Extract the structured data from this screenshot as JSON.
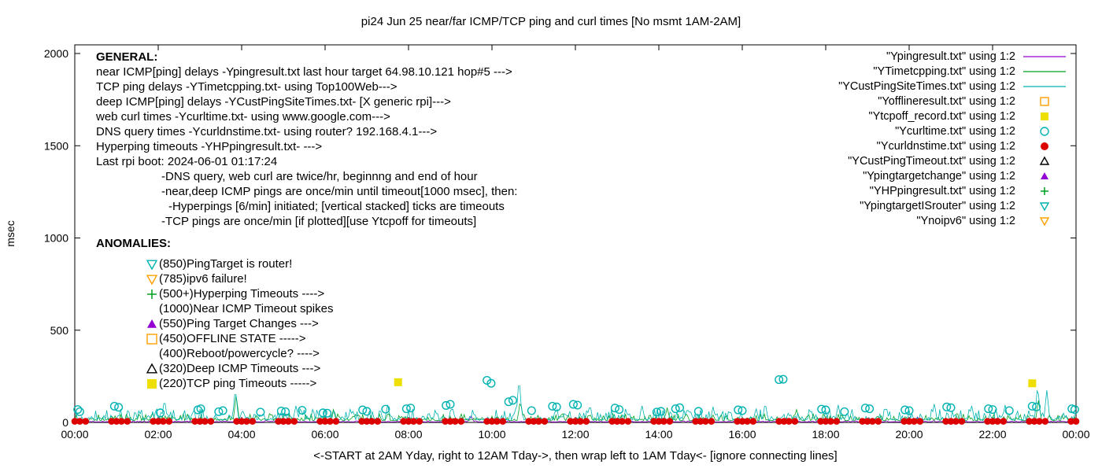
{
  "palette": {
    "purple": "#9400d3",
    "green": "#00a020",
    "teal": "#00b2b2",
    "orange": "#ffa000",
    "yellow": "#efdf00",
    "red": "#dd0000",
    "black": "#000000"
  },
  "chart_data": {
    "type": "line",
    "title": "pi24 Jun 25  near/far ICMP/TCP ping and curl times [No msmt 1AM-2AM]",
    "x_axis": {
      "label": "<-START at 2AM Yday, right to 12AM Tday->, then wrap left to 1AM Tday<- [ignore connecting lines]",
      "tick_labels": [
        "00:00",
        "02:00",
        "04:00",
        "06:00",
        "08:00",
        "10:00",
        "12:00",
        "14:00",
        "16:00",
        "18:00",
        "20:00",
        "22:00",
        "00:00"
      ],
      "hours_span": 24
    },
    "y_axis": {
      "label": "msec",
      "ticks": [
        0,
        500,
        1000,
        1500,
        2000
      ],
      "range": [
        0,
        2000
      ]
    },
    "series": [
      {
        "name": "Ypingresult.txt",
        "style": "line",
        "color": "purple",
        "baseline_msec": 3,
        "noise_msec": 7,
        "seed": 101,
        "spikes": [
          [
            9.5,
            35
          ],
          [
            20.2,
            30
          ]
        ]
      },
      {
        "name": "YTimetcpping.txt",
        "style": "line",
        "color": "green",
        "baseline_msec": 10,
        "noise_msec": 38,
        "seed": 202,
        "spikes": [
          [
            3.87,
            150
          ],
          [
            6.2,
            70
          ],
          [
            10.68,
            120
          ],
          [
            14.2,
            80
          ],
          [
            17.3,
            70
          ],
          [
            23.1,
            120
          ]
        ]
      },
      {
        "name": "YCustPingSiteTimes.txt",
        "style": "line",
        "color": "teal",
        "baseline_msec": 14,
        "noise_msec": 60,
        "seed": 303,
        "spikes": [
          [
            2.15,
            130
          ],
          [
            3.85,
            190
          ],
          [
            5.3,
            90
          ],
          [
            7.5,
            95
          ],
          [
            9.05,
            90
          ],
          [
            10.65,
            250
          ],
          [
            12.35,
            100
          ],
          [
            13.6,
            90
          ],
          [
            15.3,
            85
          ],
          [
            16.55,
            110
          ],
          [
            18.3,
            95
          ],
          [
            19.45,
            90
          ],
          [
            20.6,
            100
          ],
          [
            21.5,
            90
          ],
          [
            22.3,
            95
          ],
          [
            23.08,
            205
          ],
          [
            23.3,
            175
          ]
        ]
      },
      {
        "name": "Ycurltime.txt",
        "style": "circle-open",
        "color": "teal",
        "points": [
          [
            0.07,
            70
          ],
          [
            0.12,
            58
          ],
          [
            0.95,
            88
          ],
          [
            1.05,
            82
          ],
          [
            2.05,
            52
          ],
          [
            2.95,
            68
          ],
          [
            3.02,
            74
          ],
          [
            3.45,
            58
          ],
          [
            3.55,
            64
          ],
          [
            4.45,
            56
          ],
          [
            4.95,
            62
          ],
          [
            5.05,
            58
          ],
          [
            5.45,
            66
          ],
          [
            5.95,
            52
          ],
          [
            6.05,
            50
          ],
          [
            6.9,
            68
          ],
          [
            7.0,
            60
          ],
          [
            7.45,
            72
          ],
          [
            7.95,
            74
          ],
          [
            8.05,
            78
          ],
          [
            8.9,
            92
          ],
          [
            9.0,
            98
          ],
          [
            9.88,
            228
          ],
          [
            9.98,
            212
          ],
          [
            10.4,
            112
          ],
          [
            10.5,
            120
          ],
          [
            10.95,
            64
          ],
          [
            11.45,
            88
          ],
          [
            11.55,
            84
          ],
          [
            11.95,
            98
          ],
          [
            12.05,
            94
          ],
          [
            12.95,
            78
          ],
          [
            13.05,
            70
          ],
          [
            13.95,
            56
          ],
          [
            14.05,
            60
          ],
          [
            14.4,
            74
          ],
          [
            14.5,
            80
          ],
          [
            14.95,
            60
          ],
          [
            15.9,
            68
          ],
          [
            16.0,
            64
          ],
          [
            16.88,
            232
          ],
          [
            16.98,
            234
          ],
          [
            17.9,
            72
          ],
          [
            18.0,
            68
          ],
          [
            18.45,
            58
          ],
          [
            18.95,
            78
          ],
          [
            19.05,
            74
          ],
          [
            19.9,
            68
          ],
          [
            20.0,
            64
          ],
          [
            20.9,
            84
          ],
          [
            21.0,
            80
          ],
          [
            21.9,
            74
          ],
          [
            22.0,
            70
          ],
          [
            22.4,
            64
          ],
          [
            22.95,
            88
          ],
          [
            23.05,
            84
          ],
          [
            23.9,
            74
          ],
          [
            23.97,
            70
          ]
        ]
      },
      {
        "name": "Ycurldnstime.txt",
        "style": "circle-filled",
        "color": "red",
        "repeat": {
          "every_hours": 1,
          "offsets": [
            -0.12,
            0,
            0.12,
            0.26
          ],
          "y_msec": 6
        }
      },
      {
        "name": "Ytcpoff_record.txt",
        "style": "square-filled",
        "color": "yellow",
        "points": [
          [
            7.75,
            218
          ],
          [
            22.95,
            212
          ]
        ]
      }
    ]
  },
  "legend": [
    {
      "label": "\"Ypingresult.txt\" using 1:2",
      "marker": "line",
      "color": "purple"
    },
    {
      "label": "\"YTimetcpping.txt\" using 1:2",
      "marker": "line",
      "color": "green"
    },
    {
      "label": "\"YCustPingSiteTimes.txt\" using 1:2",
      "marker": "line",
      "color": "teal"
    },
    {
      "label": "\"Yofflineresult.txt\" using 1:2",
      "marker": "square-open",
      "color": "orange"
    },
    {
      "label": "\"Ytcpoff_record.txt\" using 1:2",
      "marker": "square-filled",
      "color": "yellow"
    },
    {
      "label": "\"Ycurltime.txt\" using 1:2",
      "marker": "circle-open",
      "color": "teal"
    },
    {
      "label": "\"Ycurldnstime.txt\" using 1:2",
      "marker": "circle-filled",
      "color": "red"
    },
    {
      "label": "\"YCustPingTimeout.txt\" using 1:2",
      "marker": "triangle-up-open",
      "color": "black"
    },
    {
      "label": "\"Ypingtargetchange\" using 1:2",
      "marker": "triangle-up-filled",
      "color": "purple"
    },
    {
      "label": "\"YHPpingresult.txt\" using 1:2",
      "marker": "plus",
      "color": "green"
    },
    {
      "label": "\"YpingtargetISrouter\" using 1:2",
      "marker": "triangle-down-open",
      "color": "teal"
    },
    {
      "label": "\"Ynoipv6\" using 1:2",
      "marker": "triangle-down-open",
      "color": "orange"
    }
  ],
  "general": {
    "heading": "GENERAL:",
    "lines": [
      {
        "text": "near ICMP[ping] delays -Ypingresult.txt last hour target 64.98.10.121 hop#5 --->",
        "indent": 0
      },
      {
        "text": "TCP ping delays -YTimetcpping.txt- using Top100Web--->",
        "indent": 0
      },
      {
        "text": "deep ICMP[ping] delays -YCustPingSiteTimes.txt- [X generic rpi]--->",
        "indent": 0
      },
      {
        "text": "web curl times -Ycurltime.txt- using www.google.com--->",
        "indent": 0
      },
      {
        "text": "DNS query times -Ycurldnstime.txt- using router? 192.168.4.1--->",
        "indent": 0
      },
      {
        "text": "Hyperping timeouts -YHPpingresult.txt- --->",
        "indent": 0
      },
      {
        "text": "Last rpi boot: 2024-06-01 01:17:24",
        "indent": 0
      },
      {
        "text": "-DNS query, web curl are twice/hr, beginnng and end of hour",
        "indent": 1
      },
      {
        "text": "-near,deep ICMP pings are once/min until timeout[1000 msec], then:",
        "indent": 1
      },
      {
        "text": "-Hyperpings [6/min] initiated; [vertical stacked] ticks are timeouts",
        "indent": 2
      },
      {
        "text": "-TCP pings are once/min [if plotted][use Ytcpoff for timeouts]",
        "indent": 1
      }
    ]
  },
  "anomalies": {
    "heading": "ANOMALIES:",
    "items": [
      {
        "marker": "triangle-down-open",
        "color": "teal",
        "text": "(850)PingTarget is router!"
      },
      {
        "marker": "triangle-down-open",
        "color": "orange",
        "text": "(785)ipv6 failure!"
      },
      {
        "marker": "plus",
        "color": "green",
        "text": "(500+)Hyperping Timeouts ---->"
      },
      {
        "marker": null,
        "color": null,
        "text": "(1000)Near ICMP Timeout spikes"
      },
      {
        "marker": "triangle-up-filled",
        "color": "purple",
        "text": "(550)Ping Target Changes --->"
      },
      {
        "marker": "square-open",
        "color": "orange",
        "text": "(450)OFFLINE STATE ----->"
      },
      {
        "marker": null,
        "color": null,
        "text": "(400)Reboot/powercycle? ---->"
      },
      {
        "marker": "triangle-up-open",
        "color": "black",
        "text": "(320)Deep ICMP Timeouts --->"
      },
      {
        "marker": "square-filled",
        "color": "yellow",
        "text": "(220)TCP ping Timeouts ----->"
      }
    ]
  }
}
